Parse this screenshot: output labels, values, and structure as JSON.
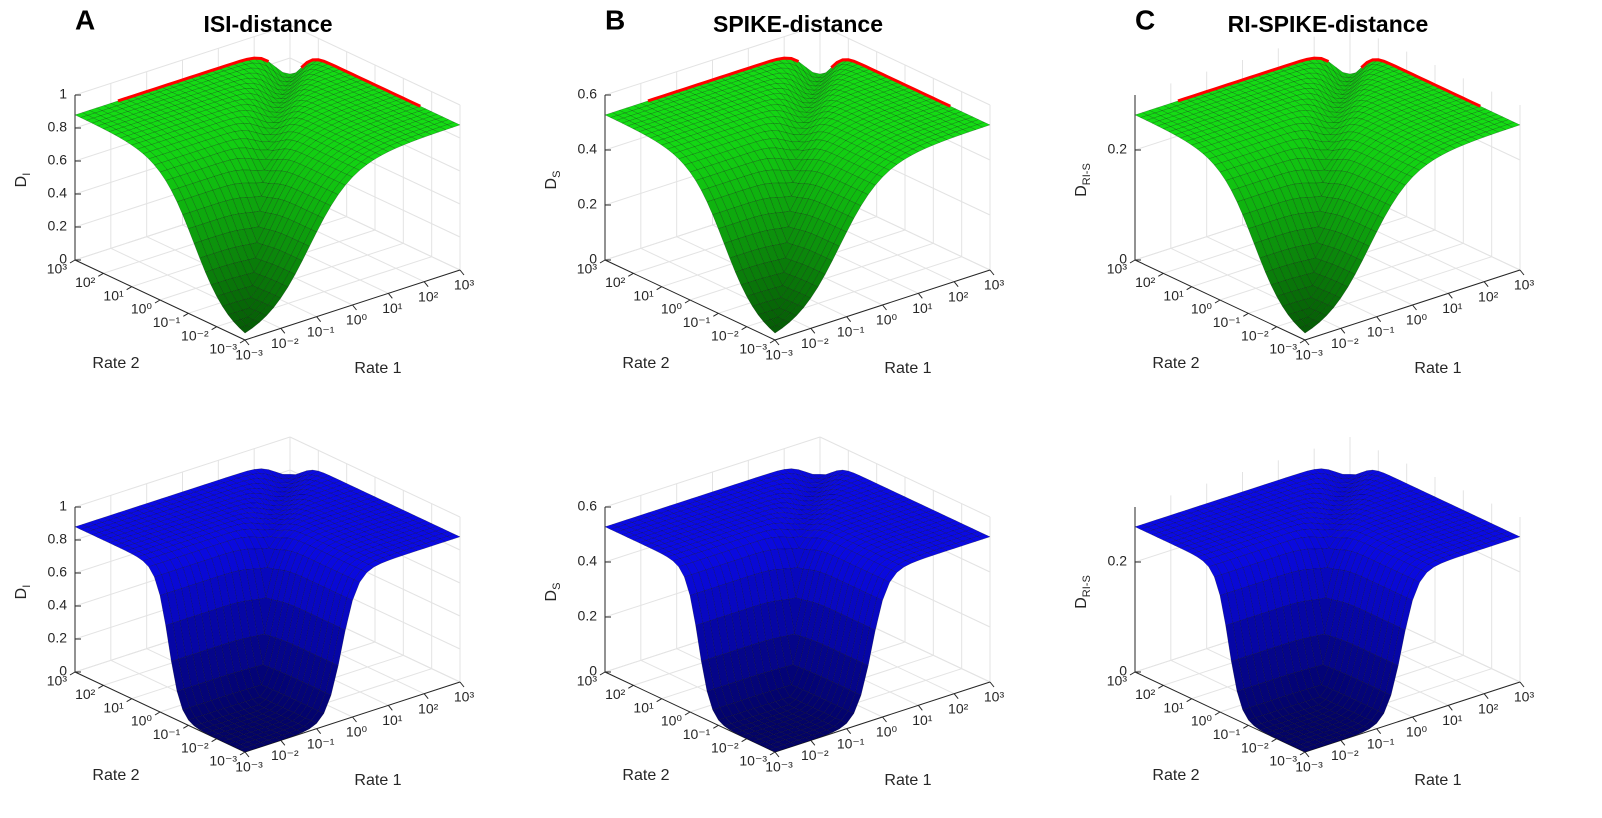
{
  "chart_data": [
    {
      "type": "surface",
      "panel": "A",
      "title": "ISI-distance",
      "xlabel": "Rate 1",
      "ylabel": "Rate 2",
      "zlabel": "D",
      "zlabel_sub": "I",
      "scale": "log",
      "xlim": [
        0.001,
        1000
      ],
      "xticks": [
        {
          "value": 0.001,
          "label": "10⁻³"
        },
        {
          "value": 0.01,
          "label": "10⁻²"
        },
        {
          "value": 0.1,
          "label": "10⁻¹"
        },
        {
          "value": 1,
          "label": "10⁰"
        },
        {
          "value": 10,
          "label": "10¹"
        },
        {
          "value": 100,
          "label": "10²"
        },
        {
          "value": 1000,
          "label": "10³"
        }
      ],
      "ylim": [
        0.001,
        1000
      ],
      "yticks": [
        {
          "value": 0.001,
          "label": "10⁻³"
        },
        {
          "value": 0.01,
          "label": "10⁻²"
        },
        {
          "value": 0.1,
          "label": "10⁻¹"
        },
        {
          "value": 1,
          "label": "10⁰"
        },
        {
          "value": 10,
          "label": "10¹"
        },
        {
          "value": 100,
          "label": "10²"
        },
        {
          "value": 1000,
          "label": "10³"
        }
      ],
      "zlim": [
        0,
        1
      ],
      "zticks": [
        0,
        0.2,
        0.4,
        0.6,
        0.8,
        1
      ],
      "color": "#1a1aff",
      "ridge_color": "#ff0000",
      "grid": true
    },
    {
      "type": "surface",
      "panel": "B",
      "title": "SPIKE-distance",
      "xlabel": "Rate 1",
      "ylabel": "Rate 2",
      "zlabel": "D",
      "zlabel_sub": "S",
      "scale": "log",
      "xlim": [
        0.001,
        1000
      ],
      "xticks": [
        {
          "value": 0.001,
          "label": "10⁻³"
        },
        {
          "value": 0.01,
          "label": "10⁻²"
        },
        {
          "value": 0.1,
          "label": "10⁻¹"
        },
        {
          "value": 1,
          "label": "10⁰"
        },
        {
          "value": 10,
          "label": "10¹"
        },
        {
          "value": 100,
          "label": "10²"
        },
        {
          "value": 1000,
          "label": "10³"
        }
      ],
      "ylim": [
        0.001,
        1000
      ],
      "yticks": [
        {
          "value": 0.001,
          "label": "10⁻³"
        },
        {
          "value": 0.01,
          "label": "10⁻²"
        },
        {
          "value": 0.1,
          "label": "10⁻¹"
        },
        {
          "value": 1,
          "label": "10⁰"
        },
        {
          "value": 10,
          "label": "10¹"
        },
        {
          "value": 100,
          "label": "10²"
        },
        {
          "value": 1000,
          "label": "10³"
        }
      ],
      "zlim": [
        0,
        0.6
      ],
      "zticks": [
        0,
        0.2,
        0.4,
        0.6
      ],
      "color": "#1a1aff",
      "ridge_color": "#ff0000",
      "grid": true
    },
    {
      "type": "surface",
      "panel": "C",
      "title": "RI-SPIKE-distance",
      "xlabel": "Rate 1",
      "ylabel": "Rate 2",
      "zlabel": "D",
      "zlabel_sub": "RI-S",
      "scale": "log",
      "xlim": [
        0.001,
        1000
      ],
      "xticks": [
        {
          "value": 0.001,
          "label": "10⁻³"
        },
        {
          "value": 0.01,
          "label": "10⁻²"
        },
        {
          "value": 0.1,
          "label": "10⁻¹"
        },
        {
          "value": 1,
          "label": "10⁰"
        },
        {
          "value": 10,
          "label": "10¹"
        },
        {
          "value": 100,
          "label": "10²"
        },
        {
          "value": 1000,
          "label": "10³"
        }
      ],
      "ylim": [
        0.001,
        1000
      ],
      "yticks": [
        {
          "value": 0.001,
          "label": "10⁻³"
        },
        {
          "value": 0.01,
          "label": "10⁻²"
        },
        {
          "value": 0.1,
          "label": "10⁻¹"
        },
        {
          "value": 1,
          "label": "10⁰"
        },
        {
          "value": 10,
          "label": "10¹"
        },
        {
          "value": 100,
          "label": "10²"
        },
        {
          "value": 1000,
          "label": "10³"
        }
      ],
      "zlim": [
        0,
        0.3
      ],
      "zticks": [
        0,
        0.2
      ],
      "color": "#1a1aff",
      "ridge_color": "#ff0000",
      "grid": true
    },
    {
      "type": "surface",
      "xlabel": "Rate 1",
      "ylabel": "Rate 2",
      "zlabel": "D",
      "zlabel_sub": "I",
      "scale": "log",
      "xlim": [
        0.001,
        1000
      ],
      "xticks": [
        {
          "value": 0.001,
          "label": "10⁻³"
        },
        {
          "value": 0.01,
          "label": "10⁻²"
        },
        {
          "value": 0.1,
          "label": "10⁻¹"
        },
        {
          "value": 1,
          "label": "10⁰"
        },
        {
          "value": 10,
          "label": "10¹"
        },
        {
          "value": 100,
          "label": "10²"
        },
        {
          "value": 1000,
          "label": "10³"
        }
      ],
      "ylim": [
        0.001,
        1000
      ],
      "yticks": [
        {
          "value": 0.001,
          "label": "10⁻³"
        },
        {
          "value": 0.01,
          "label": "10⁻²"
        },
        {
          "value": 0.1,
          "label": "10⁻¹"
        },
        {
          "value": 1,
          "label": "10⁰"
        },
        {
          "value": 10,
          "label": "10¹"
        },
        {
          "value": 100,
          "label": "10²"
        },
        {
          "value": 1000,
          "label": "10³"
        }
      ],
      "zlim": [
        0,
        1
      ],
      "zticks": [
        0,
        0.2,
        0.4,
        0.6,
        0.8,
        1
      ],
      "color": "#22d022",
      "grid": true
    },
    {
      "type": "surface",
      "xlabel": "Rate 1",
      "ylabel": "Rate 2",
      "zlabel": "D",
      "zlabel_sub": "S",
      "scale": "log",
      "xlim": [
        0.001,
        1000
      ],
      "xticks": [
        {
          "value": 0.001,
          "label": "10⁻³"
        },
        {
          "value": 0.01,
          "label": "10⁻²"
        },
        {
          "value": 0.1,
          "label": "10⁻¹"
        },
        {
          "value": 1,
          "label": "10⁰"
        },
        {
          "value": 10,
          "label": "10¹"
        },
        {
          "value": 100,
          "label": "10²"
        },
        {
          "value": 1000,
          "label": "10³"
        }
      ],
      "ylim": [
        0.001,
        1000
      ],
      "yticks": [
        {
          "value": 0.001,
          "label": "10⁻³"
        },
        {
          "value": 0.01,
          "label": "10⁻²"
        },
        {
          "value": 0.1,
          "label": "10⁻¹"
        },
        {
          "value": 1,
          "label": "10⁰"
        },
        {
          "value": 10,
          "label": "10¹"
        },
        {
          "value": 100,
          "label": "10²"
        },
        {
          "value": 1000,
          "label": "10³"
        }
      ],
      "zlim": [
        0,
        0.6
      ],
      "zticks": [
        0,
        0.2,
        0.4,
        0.6
      ],
      "color": "#22d022",
      "grid": true
    },
    {
      "type": "surface",
      "xlabel": "Rate 1",
      "ylabel": "Rate 2",
      "zlabel": "D",
      "zlabel_sub": "RI-S",
      "scale": "log",
      "xlim": [
        0.001,
        1000
      ],
      "xticks": [
        {
          "value": 0.001,
          "label": "10⁻³"
        },
        {
          "value": 0.01,
          "label": "10⁻²"
        },
        {
          "value": 0.1,
          "label": "10⁻¹"
        },
        {
          "value": 1,
          "label": "10⁰"
        },
        {
          "value": 10,
          "label": "10¹"
        },
        {
          "value": 100,
          "label": "10²"
        },
        {
          "value": 1000,
          "label": "10³"
        }
      ],
      "ylim": [
        0.001,
        1000
      ],
      "yticks": [
        {
          "value": 0.001,
          "label": "10⁻³"
        },
        {
          "value": 0.01,
          "label": "10⁻²"
        },
        {
          "value": 0.1,
          "label": "10⁻¹"
        },
        {
          "value": 1,
          "label": "10⁰"
        },
        {
          "value": 10,
          "label": "10¹"
        },
        {
          "value": 100,
          "label": "10²"
        },
        {
          "value": 1000,
          "label": "10³"
        }
      ],
      "zlim": [
        0,
        0.3
      ],
      "zticks": [
        0,
        0.2
      ],
      "color": "#22d022",
      "grid": true
    }
  ]
}
